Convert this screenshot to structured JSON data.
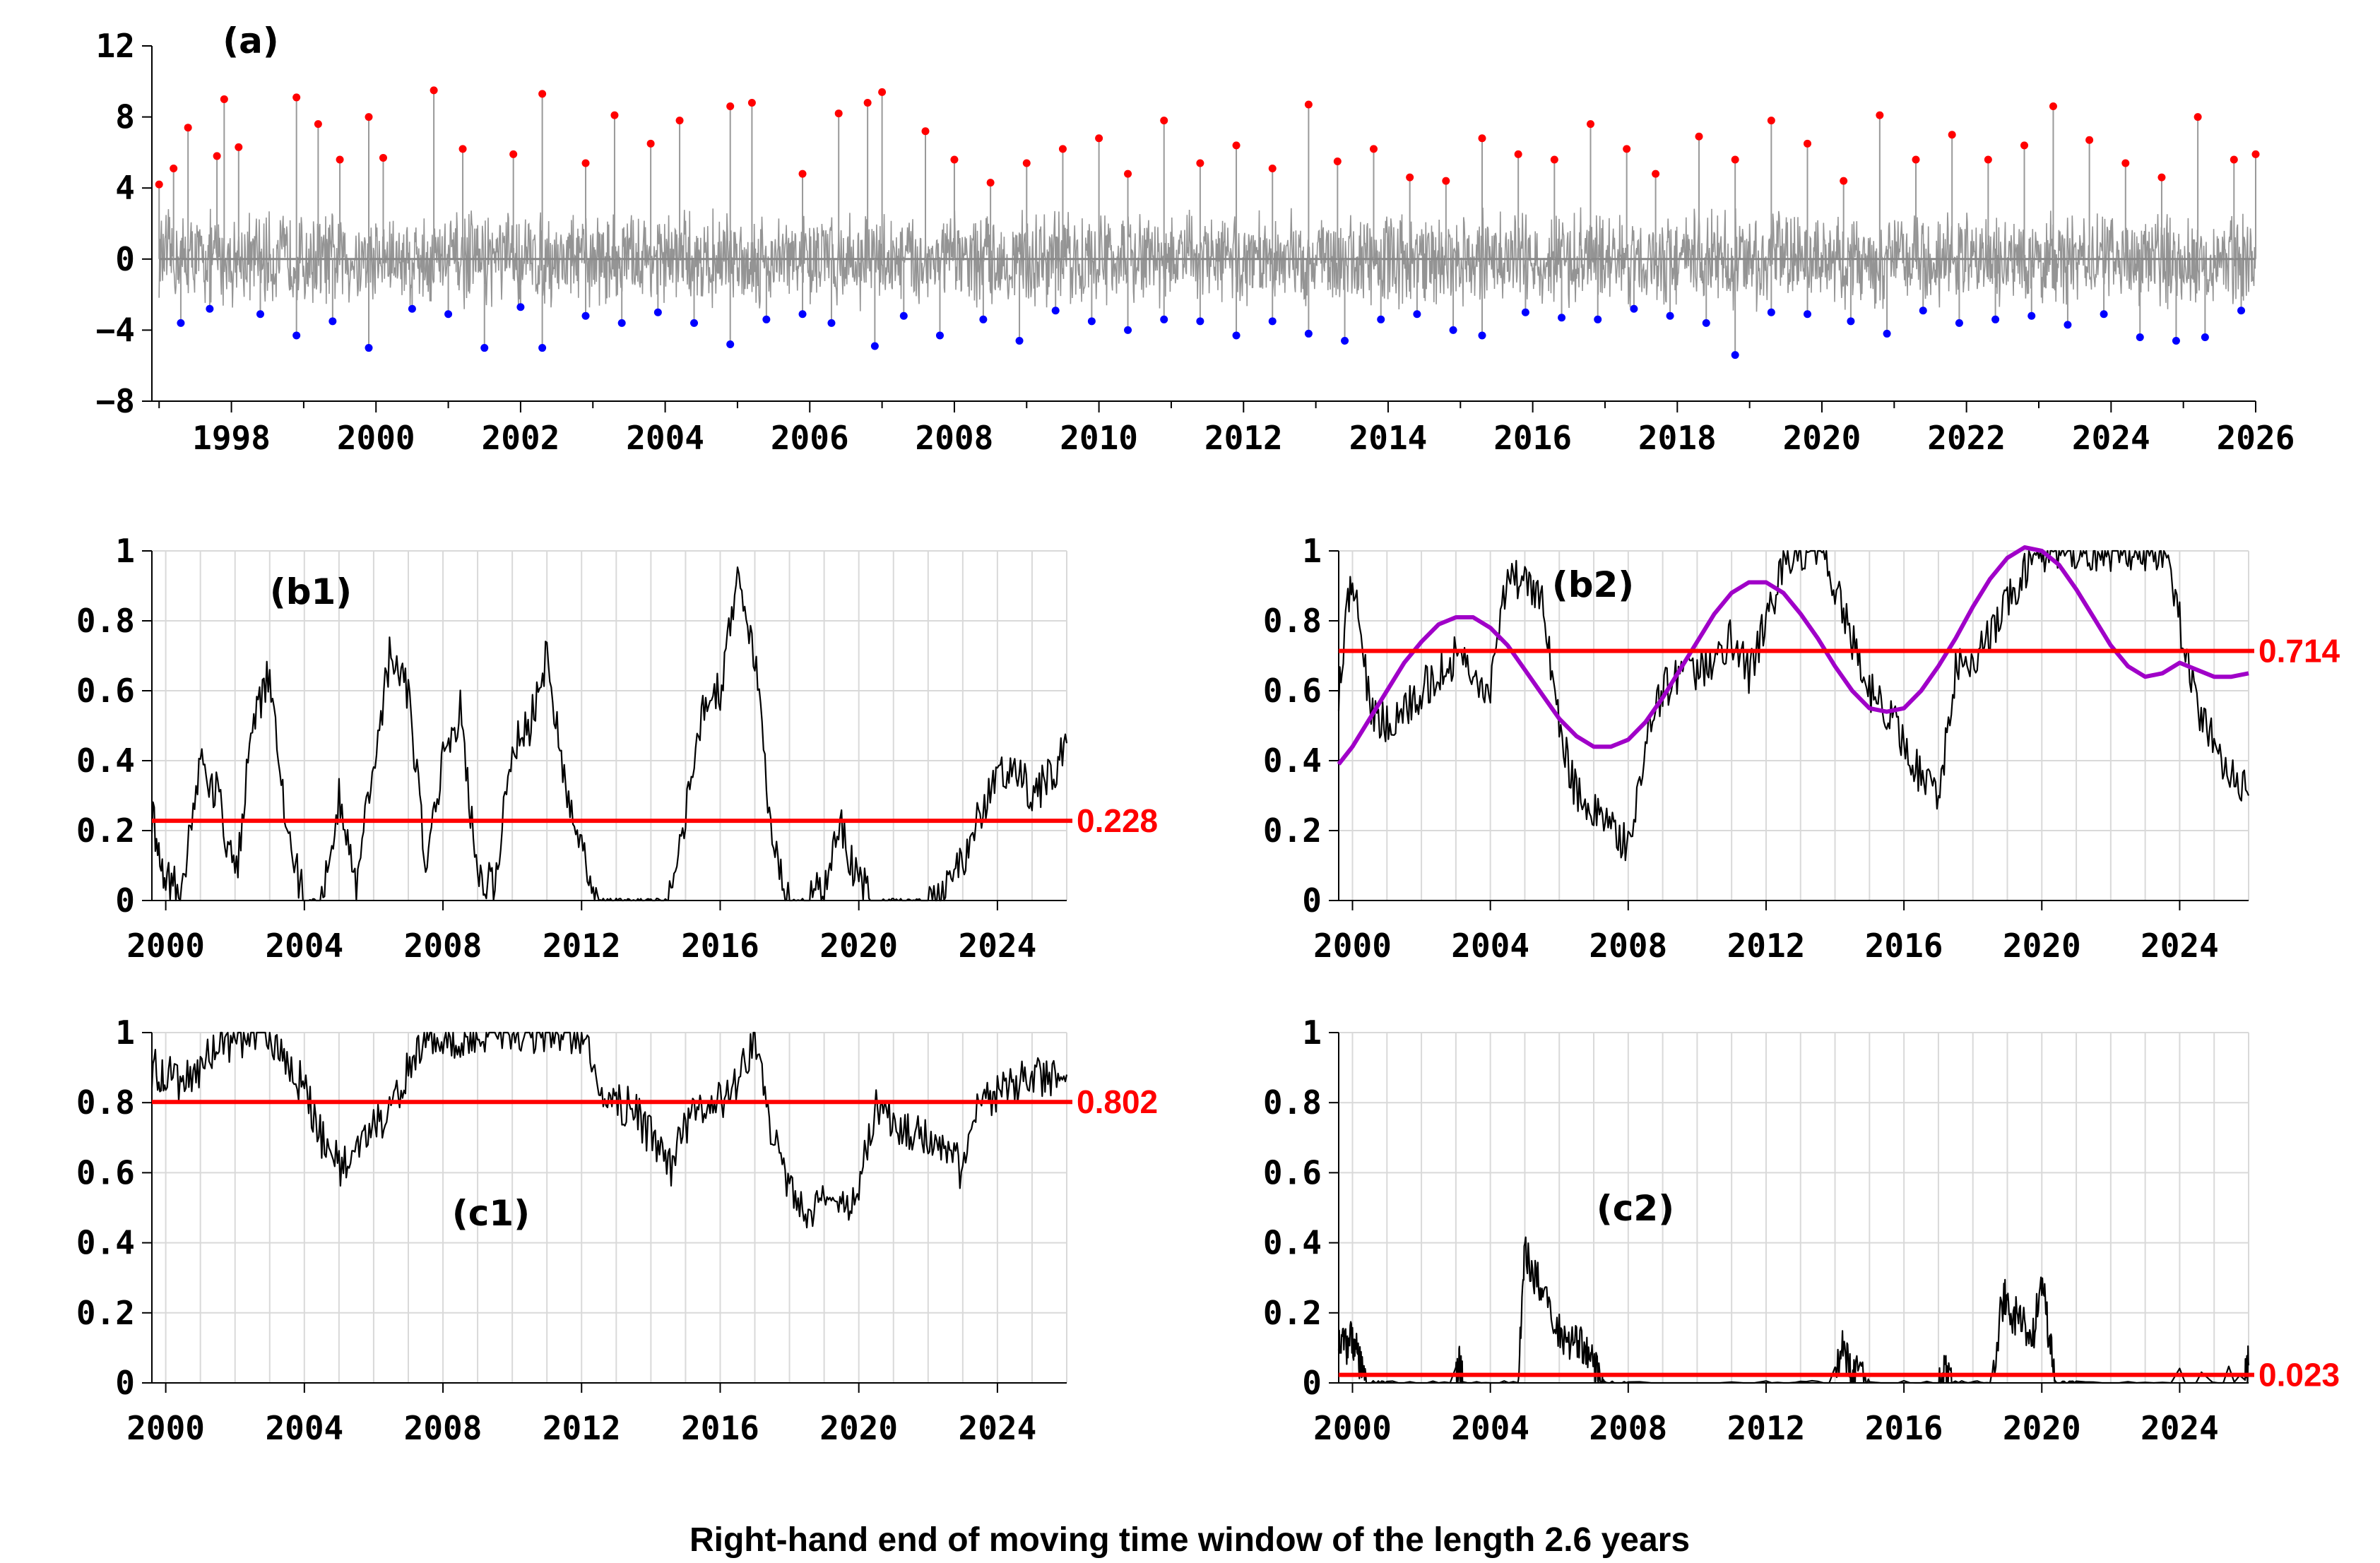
{
  "caption": "Right-hand end of moving time window of the length 2.6 years",
  "chart_data": [
    {
      "id": "a",
      "panel_label": "(a)",
      "type": "line",
      "xlim": [
        1996.9,
        2026.0
      ],
      "ylim": [
        -8,
        12
      ],
      "xticks": [
        1998,
        2000,
        2002,
        2004,
        2006,
        2008,
        2010,
        2012,
        2014,
        2016,
        2018,
        2020,
        2022,
        2024,
        2026
      ],
      "yticks": [
        12,
        8,
        4,
        0,
        -4,
        -8
      ],
      "ytick_labels": [
        "12",
        "8",
        "4",
        "0",
        "−4",
        "−8"
      ],
      "grid": false,
      "series": [
        {
          "style": "gray noise line",
          "color": "#888888",
          "x": [
            1997.0,
            1998.0,
            1999.0,
            2000.0,
            2001.0,
            2002.0,
            2003.0,
            2004.0,
            2005.0,
            2006.0,
            2007.0,
            2008.0,
            2009.0,
            2010.0,
            2011.0,
            2012.0,
            2013.0,
            2014.0,
            2015.0,
            2016.0,
            2017.0,
            2018.0,
            2019.0,
            2020.0,
            2021.0,
            2022.0,
            2023.0,
            2024.0,
            2025.0,
            2026.0
          ],
          "y": [
            0,
            0,
            0,
            0,
            0,
            0,
            0,
            0,
            0,
            0,
            0,
            0,
            0,
            0,
            0,
            0,
            0,
            0,
            0,
            0,
            0,
            0,
            0,
            0,
            0,
            0,
            0,
            0,
            0,
            0
          ]
        },
        {
          "style": "red dots (positive extremes)",
          "color": "#ff0000",
          "x": [
            1997.0,
            1997.2,
            1997.4,
            1997.8,
            1997.9,
            1998.1,
            1998.9,
            1999.2,
            1999.5,
            1999.9,
            2000.1,
            2000.8,
            2001.2,
            2001.9,
            2002.3,
            2002.9,
            2003.3,
            2003.8,
            2004.2,
            2004.9,
            2005.2,
            2005.9,
            2006.4,
            2006.8,
            2007.0,
            2007.6,
            2008.0,
            2008.5,
            2009.0,
            2009.5,
            2010.0,
            2010.4,
            2010.9,
            2011.4,
            2011.9,
            2012.4,
            2012.9,
            2013.3,
            2013.8,
            2014.3,
            2014.8,
            2015.3,
            2015.8,
            2016.3,
            2016.8,
            2017.3,
            2017.7,
            2018.3,
            2018.8,
            2019.3,
            2019.8,
            2020.3,
            2020.8,
            2021.3,
            2021.8,
            2022.3,
            2022.8,
            2023.2,
            2023.7,
            2024.2,
            2024.7,
            2025.2,
            2025.7,
            2026.0
          ],
          "y": [
            4.2,
            5.1,
            7.4,
            5.8,
            9.0,
            6.3,
            9.1,
            7.6,
            5.6,
            8.0,
            5.7,
            9.5,
            6.2,
            5.9,
            9.3,
            5.4,
            8.1,
            6.5,
            7.8,
            8.6,
            8.8,
            4.8,
            8.2,
            8.8,
            9.4,
            7.2,
            5.6,
            4.3,
            5.4,
            6.2,
            6.8,
            4.8,
            7.8,
            5.4,
            6.4,
            5.1,
            8.7,
            5.5,
            6.2,
            4.6,
            4.4,
            6.8,
            5.9,
            5.6,
            7.6,
            6.2,
            4.8,
            6.9,
            5.6,
            7.8,
            6.5,
            4.4,
            8.1,
            5.6,
            7.0,
            5.6,
            6.4,
            8.6,
            6.7,
            5.4,
            4.6,
            8.0,
            5.6,
            5.9
          ]
        },
        {
          "style": "blue dots (negative extremes)",
          "color": "#0000ff",
          "x": [
            1997.3,
            1997.7,
            1998.4,
            1998.9,
            1999.4,
            1999.9,
            2000.5,
            2001.0,
            2001.5,
            2002.0,
            2002.3,
            2002.9,
            2003.4,
            2003.9,
            2004.4,
            2004.9,
            2005.4,
            2005.9,
            2006.3,
            2006.9,
            2007.3,
            2007.8,
            2008.4,
            2008.9,
            2009.4,
            2009.9,
            2010.4,
            2010.9,
            2011.4,
            2011.9,
            2012.4,
            2012.9,
            2013.4,
            2013.9,
            2014.4,
            2014.9,
            2015.3,
            2015.9,
            2016.4,
            2016.9,
            2017.4,
            2017.9,
            2018.4,
            2018.8,
            2019.3,
            2019.8,
            2020.4,
            2020.9,
            2021.4,
            2021.9,
            2022.4,
            2022.9,
            2023.4,
            2023.9,
            2024.4,
            2024.9,
            2025.3,
            2025.8
          ],
          "y": [
            -3.6,
            -2.8,
            -3.1,
            -4.3,
            -3.5,
            -5.0,
            -2.8,
            -3.1,
            -5.0,
            -2.7,
            -5.0,
            -3.2,
            -3.6,
            -3.0,
            -3.6,
            -4.8,
            -3.4,
            -3.1,
            -3.6,
            -4.9,
            -3.2,
            -4.3,
            -3.4,
            -4.6,
            -2.9,
            -3.5,
            -4.0,
            -3.4,
            -3.5,
            -4.3,
            -3.5,
            -4.2,
            -4.6,
            -3.4,
            -3.1,
            -4.0,
            -4.3,
            -3.0,
            -3.3,
            -3.4,
            -2.8,
            -3.2,
            -3.6,
            -5.4,
            -3.0,
            -3.1,
            -3.5,
            -4.2,
            -2.9,
            -3.6,
            -3.4,
            -3.2,
            -3.7,
            -3.1,
            -4.4,
            -4.6,
            -4.4,
            -2.9
          ]
        }
      ]
    },
    {
      "id": "b1",
      "panel_label": "(b1)",
      "type": "line",
      "xlim": [
        1999.6,
        2026.0
      ],
      "ylim": [
        0,
        1
      ],
      "xticks": [
        2000,
        2004,
        2008,
        2012,
        2016,
        2020,
        2024
      ],
      "yticks": [
        1,
        0.8,
        0.6,
        0.4,
        0.2,
        0
      ],
      "ytick_labels": [
        "1",
        "0.8",
        "0.6",
        "0.4",
        "0.2",
        "0"
      ],
      "grid": true,
      "reference_line": {
        "y": 0.228,
        "label": "0.228",
        "color": "#ff0000"
      },
      "series": [
        {
          "color": "#000000",
          "x": [
            1999.6,
            2000.0,
            2000.5,
            2001.0,
            2001.5,
            2002.0,
            2002.5,
            2003.0,
            2003.5,
            2004.0,
            2004.5,
            2005.0,
            2005.5,
            2006.0,
            2006.5,
            2007.0,
            2007.5,
            2008.0,
            2008.5,
            2009.0,
            2009.5,
            2010.0,
            2010.5,
            2011.0,
            2011.5,
            2012.0,
            2012.5,
            2013.0,
            2013.5,
            2014.0,
            2014.5,
            2015.0,
            2015.5,
            2016.0,
            2016.5,
            2017.0,
            2017.5,
            2018.0,
            2018.5,
            2019.0,
            2019.5,
            2020.0,
            2020.5,
            2021.0,
            2021.5,
            2022.0,
            2022.5,
            2023.0,
            2023.5,
            2024.0,
            2024.5,
            2025.0,
            2025.5,
            2026.0
          ],
          "y": [
            0.25,
            0.05,
            0.05,
            0.4,
            0.3,
            0.05,
            0.5,
            0.65,
            0.2,
            0.0,
            0.0,
            0.3,
            0.05,
            0.4,
            0.72,
            0.6,
            0.1,
            0.4,
            0.55,
            0.05,
            0.05,
            0.45,
            0.5,
            0.7,
            0.35,
            0.15,
            0.0,
            0.0,
            0.0,
            0.0,
            0.0,
            0.25,
            0.55,
            0.6,
            0.95,
            0.7,
            0.15,
            0.0,
            0.0,
            0.05,
            0.2,
            0.05,
            0.0,
            0.0,
            0.0,
            0.0,
            0.02,
            0.12,
            0.25,
            0.35,
            0.4,
            0.3,
            0.35,
            0.45
          ]
        }
      ]
    },
    {
      "id": "b2",
      "panel_label": "(b2)",
      "type": "line",
      "xlim": [
        1999.6,
        2026.0
      ],
      "ylim": [
        0,
        1
      ],
      "xticks": [
        2000,
        2004,
        2008,
        2012,
        2016,
        2020,
        2024
      ],
      "yticks": [
        1,
        0.8,
        0.6,
        0.4,
        0.2,
        0
      ],
      "ytick_labels": [
        "1",
        "0.8",
        "0.6",
        "0.4",
        "0.2",
        "0"
      ],
      "grid": true,
      "reference_line": {
        "y": 0.714,
        "label": "0.714",
        "color": "#ff0000"
      },
      "series": [
        {
          "color": "#000000",
          "x": [
            1999.6,
            2000.0,
            2000.5,
            2001.0,
            2001.5,
            2002.0,
            2002.5,
            2003.0,
            2003.5,
            2004.0,
            2004.5,
            2005.0,
            2005.5,
            2006.0,
            2006.5,
            2007.0,
            2007.5,
            2008.0,
            2008.5,
            2009.0,
            2009.5,
            2010.0,
            2010.5,
            2011.0,
            2011.5,
            2012.0,
            2012.5,
            2013.0,
            2013.5,
            2014.0,
            2014.5,
            2015.0,
            2015.5,
            2016.0,
            2016.5,
            2017.0,
            2017.5,
            2018.0,
            2018.5,
            2019.0,
            2019.5,
            2020.0,
            2020.5,
            2021.0,
            2021.5,
            2022.0,
            2022.5,
            2023.0,
            2023.5,
            2024.0,
            2024.5,
            2025.0,
            2025.5,
            2026.0
          ],
          "y": [
            0.6,
            0.95,
            0.55,
            0.5,
            0.55,
            0.6,
            0.65,
            0.7,
            0.65,
            0.6,
            0.95,
            0.9,
            0.85,
            0.5,
            0.3,
            0.25,
            0.2,
            0.15,
            0.45,
            0.6,
            0.65,
            0.65,
            0.7,
            0.75,
            0.65,
            0.8,
            0.95,
            1.0,
            1.0,
            0.9,
            0.75,
            0.6,
            0.55,
            0.45,
            0.35,
            0.3,
            0.65,
            0.7,
            0.75,
            0.85,
            0.95,
            1.0,
            1.0,
            1.0,
            1.0,
            1.0,
            1.0,
            1.0,
            1.0,
            0.8,
            0.55,
            0.45,
            0.35,
            0.3
          ]
        },
        {
          "color": "#a000c8",
          "x": [
            1999.6,
            2000.0,
            2000.5,
            2001.0,
            2001.5,
            2002.0,
            2002.5,
            2003.0,
            2003.5,
            2004.0,
            2004.5,
            2005.0,
            2005.5,
            2006.0,
            2006.5,
            2007.0,
            2007.5,
            2008.0,
            2008.5,
            2009.0,
            2009.5,
            2010.0,
            2010.5,
            2011.0,
            2011.5,
            2012.0,
            2012.5,
            2013.0,
            2013.5,
            2014.0,
            2014.5,
            2015.0,
            2015.5,
            2016.0,
            2016.5,
            2017.0,
            2017.5,
            2018.0,
            2018.5,
            2019.0,
            2019.5,
            2020.0,
            2020.5,
            2021.0,
            2021.5,
            2022.0,
            2022.5,
            2023.0,
            2023.5,
            2024.0,
            2024.5,
            2025.0,
            2025.5,
            2026.0
          ],
          "y": [
            0.39,
            0.44,
            0.52,
            0.6,
            0.68,
            0.74,
            0.79,
            0.81,
            0.81,
            0.78,
            0.73,
            0.66,
            0.59,
            0.52,
            0.47,
            0.44,
            0.44,
            0.46,
            0.51,
            0.58,
            0.66,
            0.74,
            0.82,
            0.88,
            0.91,
            0.91,
            0.88,
            0.82,
            0.75,
            0.67,
            0.6,
            0.55,
            0.54,
            0.55,
            0.6,
            0.67,
            0.75,
            0.84,
            0.92,
            0.98,
            1.01,
            1.0,
            0.96,
            0.89,
            0.81,
            0.73,
            0.67,
            0.64,
            0.65,
            0.68,
            0.66,
            0.64,
            0.64,
            0.65
          ]
        }
      ]
    },
    {
      "id": "c1",
      "panel_label": "(c1)",
      "type": "line",
      "xlim": [
        1999.6,
        2026.0
      ],
      "ylim": [
        0,
        1
      ],
      "xticks": [
        2000,
        2004,
        2008,
        2012,
        2016,
        2020,
        2024
      ],
      "yticks": [
        1,
        0.8,
        0.6,
        0.4,
        0.2,
        0
      ],
      "ytick_labels": [
        "1",
        "0.8",
        "0.6",
        "0.4",
        "0.2",
        "0"
      ],
      "grid": true,
      "reference_line": {
        "y": 0.802,
        "label": "0.802",
        "color": "#ff0000"
      },
      "series": [
        {
          "color": "#000000",
          "x": [
            1999.6,
            2000.0,
            2000.5,
            2001.0,
            2001.5,
            2002.0,
            2002.5,
            2003.0,
            2003.5,
            2004.0,
            2004.5,
            2005.0,
            2005.5,
            2006.0,
            2006.5,
            2007.0,
            2007.5,
            2008.0,
            2008.5,
            2009.0,
            2009.5,
            2010.0,
            2010.5,
            2011.0,
            2011.5,
            2012.0,
            2012.5,
            2013.0,
            2013.5,
            2014.0,
            2014.5,
            2015.0,
            2015.5,
            2016.0,
            2016.5,
            2017.0,
            2017.5,
            2018.0,
            2018.5,
            2019.0,
            2019.5,
            2020.0,
            2020.5,
            2021.0,
            2021.5,
            2022.0,
            2022.5,
            2023.0,
            2023.5,
            2024.0,
            2024.5,
            2025.0,
            2025.5,
            2026.0
          ],
          "y": [
            0.9,
            0.88,
            0.85,
            0.9,
            0.95,
            0.98,
            1.0,
            1.0,
            0.9,
            0.85,
            0.7,
            0.62,
            0.65,
            0.72,
            0.78,
            0.9,
            1.0,
            1.0,
            0.95,
            1.0,
            1.0,
            1.0,
            1.0,
            1.0,
            1.0,
            1.0,
            0.85,
            0.8,
            0.78,
            0.7,
            0.6,
            0.72,
            0.8,
            0.8,
            0.85,
            1.0,
            0.7,
            0.55,
            0.5,
            0.52,
            0.5,
            0.55,
            0.8,
            0.75,
            0.72,
            0.7,
            0.68,
            0.6,
            0.8,
            0.82,
            0.85,
            0.88,
            0.86,
            0.88
          ]
        }
      ]
    },
    {
      "id": "c2",
      "panel_label": "(c2)",
      "type": "line",
      "xlim": [
        1999.6,
        2026.0
      ],
      "ylim": [
        0,
        1
      ],
      "xticks": [
        2000,
        2004,
        2008,
        2012,
        2016,
        2020,
        2024
      ],
      "yticks": [
        1,
        0.8,
        0.6,
        0.4,
        0.2,
        0
      ],
      "ytick_labels": [
        "1",
        "0.8",
        "0.6",
        "0.4",
        "0.2",
        "0"
      ],
      "grid": true,
      "reference_line": {
        "y": 0.023,
        "label": "0.023",
        "color": "#ff0000"
      },
      "series": [
        {
          "color": "#000000",
          "x": [
            1999.6,
            1999.8,
            2000.0,
            2000.2,
            2000.4,
            2001.0,
            2003.0,
            2003.1,
            2003.2,
            2004.8,
            2005.0,
            2005.3,
            2005.6,
            2006.0,
            2006.3,
            2006.6,
            2006.9,
            2007.1,
            2007.3,
            2008.0,
            2012.0,
            2014.0,
            2014.2,
            2014.4,
            2014.6,
            2015.0,
            2017.0,
            2017.2,
            2017.4,
            2018.5,
            2018.9,
            2019.1,
            2019.4,
            2019.7,
            2020.0,
            2020.2,
            2020.4,
            2021.0,
            2024.0,
            2025.9,
            2026.0
          ],
          "y": [
            0.15,
            0.1,
            0.14,
            0.05,
            0.0,
            0.0,
            0.0,
            0.05,
            0.0,
            0.0,
            0.38,
            0.3,
            0.25,
            0.15,
            0.1,
            0.12,
            0.08,
            0.02,
            0.0,
            0.0,
            0.0,
            0.0,
            0.12,
            0.05,
            0.02,
            0.0,
            0.0,
            0.03,
            0.0,
            0.0,
            0.25,
            0.2,
            0.18,
            0.12,
            0.28,
            0.15,
            0.0,
            0.0,
            0.0,
            0.02,
            0.05
          ]
        }
      ]
    }
  ]
}
